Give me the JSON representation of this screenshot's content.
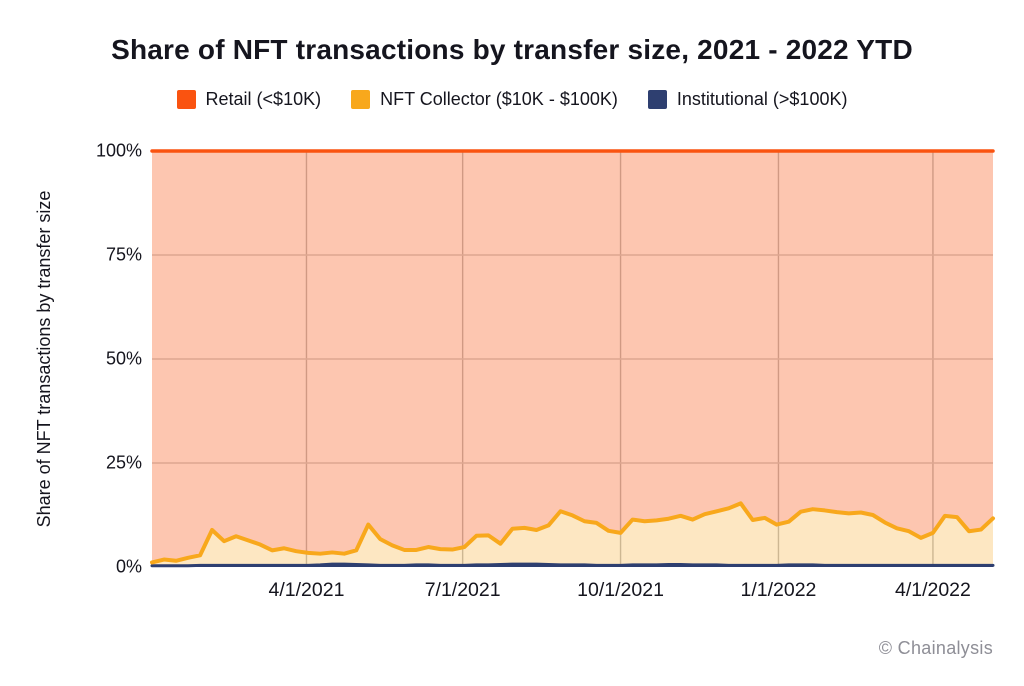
{
  "title": "Share of NFT transactions by transfer size, 2021 - 2022 YTD",
  "legend": [
    {
      "label": "Retail (<$10K)",
      "color": "#FA5310"
    },
    {
      "label": "NFT Collector ($10K - $100K)",
      "color": "#F8A81C"
    },
    {
      "label": "Institutional (>$100K)",
      "color": "#2E3F70"
    }
  ],
  "y_axis": {
    "title": "Share of NFT transactions by transfer size",
    "ticks": [
      "100%",
      "75%",
      "50%",
      "25%",
      "0%"
    ]
  },
  "x_axis": {
    "ticks": [
      "4/1/2021",
      "7/1/2021",
      "10/1/2021",
      "1/1/2022",
      "4/1/2022"
    ]
  },
  "watermark": "© Chainalysis",
  "colors": {
    "retail_line": "#FA5310",
    "retail_fill": "rgba(250,83,16,0.33)",
    "collector_line": "#F8A81C",
    "collector_fill": "rgba(248,168,28,0.27)",
    "institutional": "#2E3F70",
    "h_grid": "#CFCFCF",
    "v_grid": "#BDBDBD",
    "text": "#15151E",
    "watermark": "#8E8E96"
  },
  "chart_data": {
    "type": "area",
    "stacked": true,
    "normalized_to_100": true,
    "title": "Share of NFT transactions by transfer size, 2021 - 2022 YTD",
    "xlabel": "",
    "ylabel": "Share of NFT transactions by transfer size",
    "ylim": [
      0,
      100
    ],
    "unit": "%",
    "grid": true,
    "legend_position": "top",
    "x_tick_labels": [
      "4/1/2021",
      "7/1/2021",
      "10/1/2021",
      "1/1/2022",
      "4/1/2022"
    ],
    "x": [
      "1/1/2021",
      "1/8/2021",
      "1/15/2021",
      "1/22/2021",
      "1/29/2021",
      "2/5/2021",
      "2/12/2021",
      "2/19/2021",
      "2/26/2021",
      "3/5/2021",
      "3/12/2021",
      "3/19/2021",
      "3/26/2021",
      "4/2/2021",
      "4/9/2021",
      "4/16/2021",
      "4/23/2021",
      "4/30/2021",
      "5/7/2021",
      "5/14/2021",
      "5/21/2021",
      "5/28/2021",
      "6/4/2021",
      "6/11/2021",
      "6/18/2021",
      "6/25/2021",
      "7/2/2021",
      "7/9/2021",
      "7/16/2021",
      "7/23/2021",
      "7/30/2021",
      "8/6/2021",
      "8/13/2021",
      "8/20/2021",
      "8/27/2021",
      "9/3/2021",
      "9/10/2021",
      "9/17/2021",
      "9/24/2021",
      "10/1/2021",
      "10/8/2021",
      "10/15/2021",
      "10/22/2021",
      "10/29/2021",
      "11/5/2021",
      "11/12/2021",
      "11/19/2021",
      "11/26/2021",
      "12/3/2021",
      "12/10/2021",
      "12/17/2021",
      "12/24/2021",
      "12/31/2021",
      "1/7/2022",
      "1/14/2022",
      "1/21/2022",
      "1/28/2022",
      "2/4/2022",
      "2/11/2022",
      "2/18/2022",
      "2/25/2022",
      "3/4/2022",
      "3/11/2022",
      "3/18/2022",
      "3/25/2022",
      "4/1/2022",
      "4/8/2022",
      "4/15/2022",
      "4/22/2022",
      "4/29/2022",
      "5/6/2022"
    ],
    "series": [
      {
        "name": "Institutional (>$100K)",
        "values": [
          0.3,
          0.3,
          0.3,
          0.3,
          0.4,
          0.4,
          0.4,
          0.4,
          0.4,
          0.4,
          0.4,
          0.4,
          0.4,
          0.4,
          0.5,
          0.7,
          0.7,
          0.6,
          0.5,
          0.4,
          0.4,
          0.4,
          0.5,
          0.5,
          0.4,
          0.4,
          0.4,
          0.5,
          0.5,
          0.6,
          0.7,
          0.7,
          0.7,
          0.6,
          0.5,
          0.5,
          0.5,
          0.4,
          0.4,
          0.4,
          0.5,
          0.5,
          0.5,
          0.6,
          0.6,
          0.5,
          0.5,
          0.5,
          0.4,
          0.4,
          0.4,
          0.4,
          0.4,
          0.5,
          0.5,
          0.5,
          0.4,
          0.4,
          0.4,
          0.4,
          0.4,
          0.4,
          0.4,
          0.4,
          0.4,
          0.4,
          0.4,
          0.4,
          0.4,
          0.4,
          0.4
        ]
      },
      {
        "name": "NFT Collector ($10K - $100K)",
        "values": [
          0.8,
          1.5,
          1.2,
          1.9,
          2.4,
          8.5,
          5.8,
          7.0,
          6.0,
          5.0,
          3.6,
          4.1,
          3.4,
          3.0,
          2.7,
          2.8,
          2.5,
          3.4,
          9.7,
          6.3,
          4.8,
          3.7,
          3.6,
          4.3,
          3.9,
          3.8,
          4.4,
          7.0,
          7.1,
          5.0,
          8.5,
          8.7,
          8.2,
          9.4,
          12.9,
          11.9,
          10.5,
          10.2,
          8.3,
          7.8,
          10.9,
          10.5,
          10.7,
          11.0,
          11.7,
          10.9,
          12.2,
          12.9,
          13.7,
          14.9,
          10.9,
          11.4,
          9.8,
          10.4,
          12.8,
          13.4,
          13.2,
          12.8,
          12.5,
          12.7,
          12.1,
          10.3,
          8.9,
          8.2,
          6.6,
          7.8,
          11.9,
          11.6,
          8.2,
          8.6,
          11.3
        ]
      },
      {
        "name": "Retail (<$10K)",
        "values": [
          98.9,
          98.2,
          98.5,
          97.8,
          97.2,
          91.1,
          93.8,
          92.6,
          93.6,
          94.6,
          96.0,
          95.5,
          96.2,
          96.6,
          96.8,
          96.5,
          96.8,
          96.0,
          89.8,
          93.3,
          94.8,
          95.9,
          95.9,
          95.2,
          95.7,
          95.8,
          95.2,
          92.5,
          92.4,
          94.4,
          90.8,
          90.6,
          91.1,
          90.0,
          86.6,
          87.6,
          89.0,
          89.4,
          91.3,
          91.8,
          88.6,
          89.0,
          88.8,
          88.4,
          87.7,
          88.6,
          87.3,
          86.6,
          85.9,
          84.7,
          88.7,
          88.2,
          89.8,
          89.1,
          86.7,
          86.1,
          86.4,
          86.8,
          87.1,
          86.9,
          87.5,
          89.3,
          90.7,
          91.4,
          93.0,
          91.8,
          87.7,
          88.0,
          91.4,
          91.0,
          88.3
        ]
      }
    ]
  }
}
